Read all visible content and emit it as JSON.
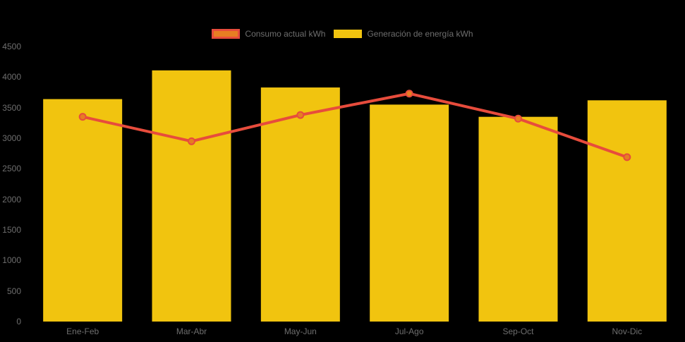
{
  "colors": {
    "background": "#000000",
    "axis_text": "#6e6e6e",
    "bar_fill": "#F1C40F",
    "line_stroke": "#E74C3C",
    "point_fill": "#E67E22"
  },
  "legend": {
    "items": [
      {
        "label": "Consumo actual kWh",
        "type": "line"
      },
      {
        "label": "Generación de energía kWh",
        "type": "bar"
      }
    ]
  },
  "chart_data": {
    "type": "combo-bar-line",
    "categories": [
      "Ene-Feb",
      "Mar-Abr",
      "May-Jun",
      "Jul-Ago",
      "Sep-Oct",
      "Nov-Dic"
    ],
    "series": [
      {
        "name": "Consumo actual kWh",
        "type": "line",
        "color": "#E74C3C",
        "point_color": "#E67E22",
        "values": [
          3350,
          2950,
          3380,
          3730,
          3320,
          2690
        ]
      },
      {
        "name": "Generación de energía kWh",
        "type": "bar",
        "color": "#F1C40F",
        "values": [
          3640,
          4110,
          3830,
          3550,
          3350,
          3620
        ]
      }
    ],
    "title": "",
    "xlabel": "",
    "ylabel": "",
    "ylim": [
      0,
      4500
    ],
    "ytick_step": 500,
    "grid": false,
    "legend_position": "top"
  }
}
